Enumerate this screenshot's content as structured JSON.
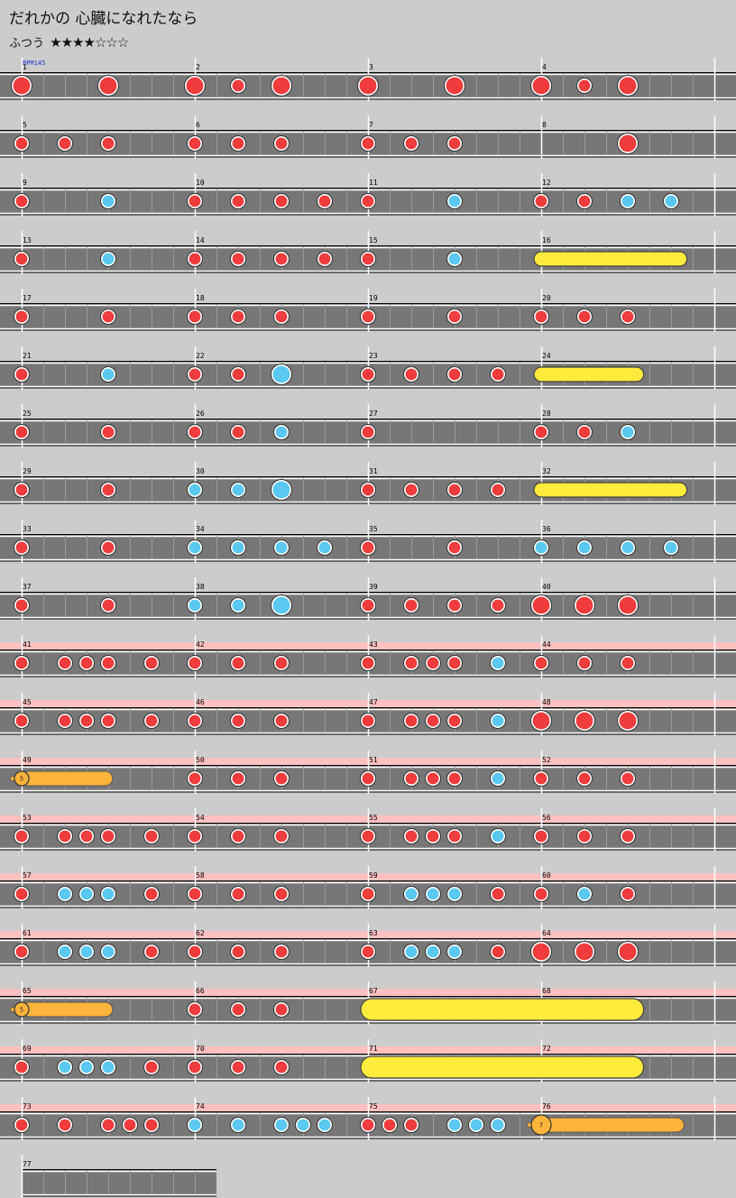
{
  "song": {
    "title": "だれかの 心臓になれたなら",
    "difficulty": "ふつう",
    "stars": "★★★★☆☆☆",
    "bpm_label": "BPM145"
  },
  "colors": {
    "background": "#cccccc",
    "lane": "#777777",
    "gogo_band": "#ffc0c0",
    "don": "#f03c3c",
    "ka": "#5ac8f0",
    "drumroll": "#ffeb3c",
    "balloon": "#ffb43c"
  },
  "rows": [
    {
      "measures": [
        1,
        2,
        3,
        4
      ],
      "gogo": false,
      "notes": [
        [
          "D",
          0,
          0
        ],
        [
          "D",
          0,
          4
        ],
        [
          "D",
          0,
          8
        ],
        [
          "d",
          0,
          10
        ],
        [
          "D",
          0,
          12
        ],
        [
          "D",
          0,
          16
        ],
        [
          "D",
          0,
          20
        ],
        [
          "D",
          0,
          24
        ],
        [
          "d",
          0,
          26
        ],
        [
          "D",
          0,
          28
        ]
      ],
      "rolls": []
    },
    {
      "measures": [
        5,
        6,
        7,
        8
      ],
      "gogo": false,
      "notes": [
        [
          "d",
          0,
          0
        ],
        [
          "d",
          0,
          2
        ],
        [
          "d",
          0,
          4
        ],
        [
          "d",
          0,
          8
        ],
        [
          "d",
          0,
          10
        ],
        [
          "d",
          0,
          12
        ],
        [
          "d",
          0,
          16
        ],
        [
          "d",
          0,
          18
        ],
        [
          "d",
          0,
          20
        ],
        [
          "D",
          0,
          28
        ]
      ],
      "rolls": []
    },
    {
      "measures": [
        9,
        10,
        11,
        12
      ],
      "gogo": false,
      "notes": [
        [
          "d",
          0,
          0
        ],
        [
          "k",
          0,
          4
        ],
        [
          "d",
          0,
          8
        ],
        [
          "d",
          0,
          10
        ],
        [
          "d",
          0,
          12
        ],
        [
          "d",
          0,
          14
        ],
        [
          "d",
          0,
          16
        ],
        [
          "k",
          0,
          20
        ],
        [
          "d",
          0,
          24
        ],
        [
          "d",
          0,
          26
        ],
        [
          "k",
          0,
          28
        ],
        [
          "k",
          0,
          30
        ]
      ],
      "rolls": []
    },
    {
      "measures": [
        13,
        14,
        15,
        16
      ],
      "gogo": false,
      "notes": [
        [
          "d",
          0,
          0
        ],
        [
          "k",
          0,
          4
        ],
        [
          "d",
          0,
          8
        ],
        [
          "d",
          0,
          10
        ],
        [
          "d",
          0,
          12
        ],
        [
          "d",
          0,
          14
        ],
        [
          "d",
          0,
          16
        ],
        [
          "k",
          0,
          20
        ]
      ],
      "rolls": [
        [
          "roll",
          24,
          30.4,
          null
        ]
      ]
    },
    {
      "measures": [
        17,
        18,
        19,
        20
      ],
      "gogo": false,
      "notes": [
        [
          "d",
          0,
          0
        ],
        [
          "d",
          0,
          4
        ],
        [
          "d",
          0,
          8
        ],
        [
          "d",
          0,
          10
        ],
        [
          "d",
          0,
          12
        ],
        [
          "d",
          0,
          16
        ],
        [
          "d",
          0,
          20
        ],
        [
          "d",
          0,
          24
        ],
        [
          "d",
          0,
          26
        ],
        [
          "d",
          0,
          28
        ]
      ],
      "rolls": []
    },
    {
      "measures": [
        21,
        22,
        23,
        24
      ],
      "gogo": false,
      "notes": [
        [
          "d",
          0,
          0
        ],
        [
          "k",
          0,
          4
        ],
        [
          "d",
          0,
          8
        ],
        [
          "d",
          0,
          10
        ],
        [
          "K",
          0,
          12
        ],
        [
          "d",
          0,
          16
        ],
        [
          "d",
          0,
          18
        ],
        [
          "d",
          0,
          20
        ],
        [
          "d",
          0,
          22
        ]
      ],
      "rolls": [
        [
          "roll",
          24,
          28.4,
          null
        ]
      ]
    },
    {
      "measures": [
        25,
        26,
        27,
        28
      ],
      "gogo": false,
      "notes": [
        [
          "d",
          0,
          0
        ],
        [
          "d",
          0,
          4
        ],
        [
          "d",
          0,
          8
        ],
        [
          "d",
          0,
          10
        ],
        [
          "k",
          0,
          12
        ],
        [
          "d",
          0,
          16
        ],
        [
          "d",
          0,
          24
        ],
        [
          "d",
          0,
          26
        ],
        [
          "k",
          0,
          28
        ]
      ],
      "rolls": []
    },
    {
      "measures": [
        29,
        30,
        31,
        32
      ],
      "gogo": false,
      "notes": [
        [
          "d",
          0,
          0
        ],
        [
          "d",
          0,
          4
        ],
        [
          "k",
          0,
          8
        ],
        [
          "k",
          0,
          10
        ],
        [
          "K",
          0,
          12
        ],
        [
          "d",
          0,
          16
        ],
        [
          "d",
          0,
          18
        ],
        [
          "d",
          0,
          20
        ],
        [
          "d",
          0,
          22
        ]
      ],
      "rolls": [
        [
          "roll",
          24,
          30.4,
          null
        ]
      ]
    },
    {
      "measures": [
        33,
        34,
        35,
        36
      ],
      "gogo": false,
      "notes": [
        [
          "d",
          0,
          0
        ],
        [
          "d",
          0,
          4
        ],
        [
          "k",
          0,
          8
        ],
        [
          "k",
          0,
          10
        ],
        [
          "k",
          0,
          12
        ],
        [
          "k",
          0,
          14
        ],
        [
          "d",
          0,
          16
        ],
        [
          "d",
          0,
          20
        ],
        [
          "k",
          0,
          24
        ],
        [
          "k",
          0,
          26
        ],
        [
          "k",
          0,
          28
        ],
        [
          "k",
          0,
          30
        ]
      ],
      "rolls": []
    },
    {
      "measures": [
        37,
        38,
        39,
        40
      ],
      "gogo": false,
      "notes": [
        [
          "d",
          0,
          0
        ],
        [
          "d",
          0,
          4
        ],
        [
          "k",
          0,
          8
        ],
        [
          "k",
          0,
          10
        ],
        [
          "K",
          0,
          12
        ],
        [
          "d",
          0,
          16
        ],
        [
          "d",
          0,
          18
        ],
        [
          "d",
          0,
          20
        ],
        [
          "d",
          0,
          22
        ],
        [
          "D",
          0,
          24
        ],
        [
          "D",
          0,
          26
        ],
        [
          "D",
          0,
          28
        ]
      ],
      "rolls": []
    },
    {
      "measures": [
        41,
        42,
        43,
        44
      ],
      "gogo": true,
      "notes": [
        [
          "d",
          0,
          0
        ],
        [
          "d",
          0,
          2
        ],
        [
          "d",
          0,
          3
        ],
        [
          "d",
          0,
          4
        ],
        [
          "d",
          0,
          6
        ],
        [
          "d",
          0,
          8
        ],
        [
          "d",
          0,
          10
        ],
        [
          "d",
          0,
          12
        ],
        [
          "d",
          0,
          16
        ],
        [
          "d",
          0,
          18
        ],
        [
          "d",
          0,
          19
        ],
        [
          "d",
          0,
          20
        ],
        [
          "k",
          0,
          22
        ],
        [
          "d",
          0,
          24
        ],
        [
          "d",
          0,
          26
        ],
        [
          "d",
          0,
          28
        ]
      ],
      "rolls": []
    },
    {
      "measures": [
        45,
        46,
        47,
        48
      ],
      "gogo": true,
      "notes": [
        [
          "d",
          0,
          0
        ],
        [
          "d",
          0,
          2
        ],
        [
          "d",
          0,
          3
        ],
        [
          "d",
          0,
          4
        ],
        [
          "d",
          0,
          6
        ],
        [
          "d",
          0,
          8
        ],
        [
          "d",
          0,
          10
        ],
        [
          "d",
          0,
          12
        ],
        [
          "d",
          0,
          16
        ],
        [
          "d",
          0,
          18
        ],
        [
          "d",
          0,
          19
        ],
        [
          "d",
          0,
          20
        ],
        [
          "k",
          0,
          22
        ],
        [
          "D",
          0,
          24
        ],
        [
          "D",
          0,
          26
        ],
        [
          "D",
          0,
          28
        ]
      ],
      "rolls": []
    },
    {
      "measures": [
        49,
        50,
        51,
        52
      ],
      "gogo": true,
      "notes": [
        [
          "d",
          0,
          8
        ],
        [
          "d",
          0,
          10
        ],
        [
          "d",
          0,
          12
        ],
        [
          "d",
          0,
          16
        ],
        [
          "d",
          0,
          18
        ],
        [
          "d",
          0,
          19
        ],
        [
          "d",
          0,
          20
        ],
        [
          "k",
          0,
          22
        ],
        [
          "d",
          0,
          24
        ],
        [
          "d",
          0,
          26
        ],
        [
          "d",
          0,
          28
        ]
      ],
      "rolls": [
        [
          "balloon",
          0,
          4.2,
          "5"
        ]
      ]
    },
    {
      "measures": [
        53,
        54,
        55,
        56
      ],
      "gogo": true,
      "notes": [
        [
          "d",
          0,
          0
        ],
        [
          "d",
          0,
          2
        ],
        [
          "d",
          0,
          3
        ],
        [
          "d",
          0,
          4
        ],
        [
          "d",
          0,
          6
        ],
        [
          "d",
          0,
          8
        ],
        [
          "d",
          0,
          10
        ],
        [
          "d",
          0,
          12
        ],
        [
          "d",
          0,
          16
        ],
        [
          "d",
          0,
          18
        ],
        [
          "d",
          0,
          19
        ],
        [
          "d",
          0,
          20
        ],
        [
          "k",
          0,
          22
        ],
        [
          "d",
          0,
          24
        ],
        [
          "d",
          0,
          26
        ],
        [
          "d",
          0,
          28
        ]
      ],
      "rolls": []
    },
    {
      "measures": [
        57,
        58,
        59,
        60
      ],
      "gogo": true,
      "notes": [
        [
          "d",
          0,
          0
        ],
        [
          "k",
          0,
          2
        ],
        [
          "k",
          0,
          3
        ],
        [
          "k",
          0,
          4
        ],
        [
          "d",
          0,
          6
        ],
        [
          "d",
          0,
          8
        ],
        [
          "d",
          0,
          10
        ],
        [
          "d",
          0,
          12
        ],
        [
          "d",
          0,
          16
        ],
        [
          "k",
          0,
          18
        ],
        [
          "k",
          0,
          19
        ],
        [
          "k",
          0,
          20
        ],
        [
          "d",
          0,
          22
        ],
        [
          "d",
          0,
          24
        ],
        [
          "k",
          0,
          26
        ],
        [
          "d",
          0,
          28
        ]
      ],
      "rolls": []
    },
    {
      "measures": [
        61,
        62,
        63,
        64
      ],
      "gogo": true,
      "notes": [
        [
          "d",
          0,
          0
        ],
        [
          "k",
          0,
          2
        ],
        [
          "k",
          0,
          3
        ],
        [
          "k",
          0,
          4
        ],
        [
          "d",
          0,
          6
        ],
        [
          "d",
          0,
          8
        ],
        [
          "d",
          0,
          10
        ],
        [
          "d",
          0,
          12
        ],
        [
          "d",
          0,
          16
        ],
        [
          "k",
          0,
          18
        ],
        [
          "k",
          0,
          19
        ],
        [
          "k",
          0,
          20
        ],
        [
          "d",
          0,
          22
        ],
        [
          "D",
          0,
          24
        ],
        [
          "D",
          0,
          26
        ],
        [
          "D",
          0,
          28
        ]
      ],
      "rolls": []
    },
    {
      "measures": [
        65,
        66,
        67,
        68
      ],
      "gogo": true,
      "notes": [
        [
          "d",
          0,
          8
        ],
        [
          "d",
          0,
          10
        ],
        [
          "d",
          0,
          12
        ]
      ],
      "rolls": [
        [
          "balloon",
          0,
          4.2,
          "5"
        ],
        [
          "ROLL",
          16,
          28.4,
          null
        ]
      ]
    },
    {
      "measures": [
        69,
        70,
        71,
        72
      ],
      "gogo": true,
      "notes": [
        [
          "d",
          0,
          0
        ],
        [
          "k",
          0,
          2
        ],
        [
          "k",
          0,
          3
        ],
        [
          "k",
          0,
          4
        ],
        [
          "d",
          0,
          6
        ],
        [
          "d",
          0,
          8
        ],
        [
          "d",
          0,
          10
        ],
        [
          "d",
          0,
          12
        ]
      ],
      "rolls": [
        [
          "ROLL",
          16,
          28.4,
          null
        ]
      ]
    },
    {
      "measures": [
        73,
        74,
        75,
        76
      ],
      "gogo": true,
      "notes": [
        [
          "d",
          0,
          0
        ],
        [
          "d",
          0,
          2
        ],
        [
          "d",
          0,
          4
        ],
        [
          "d",
          0,
          5
        ],
        [
          "d",
          0,
          6
        ],
        [
          "k",
          0,
          8
        ],
        [
          "k",
          0,
          10
        ],
        [
          "k",
          0,
          12
        ],
        [
          "k",
          0,
          13
        ],
        [
          "k",
          0,
          14
        ],
        [
          "d",
          0,
          16
        ],
        [
          "d",
          0,
          17
        ],
        [
          "d",
          0,
          18
        ],
        [
          "k",
          0,
          20
        ],
        [
          "k",
          0,
          21
        ],
        [
          "k",
          0,
          22
        ]
      ],
      "rolls": [
        [
          "balloon",
          24,
          30.6,
          "7"
        ]
      ]
    },
    {
      "measures": [
        77
      ],
      "gogo": false,
      "notes": [],
      "rolls": []
    }
  ]
}
